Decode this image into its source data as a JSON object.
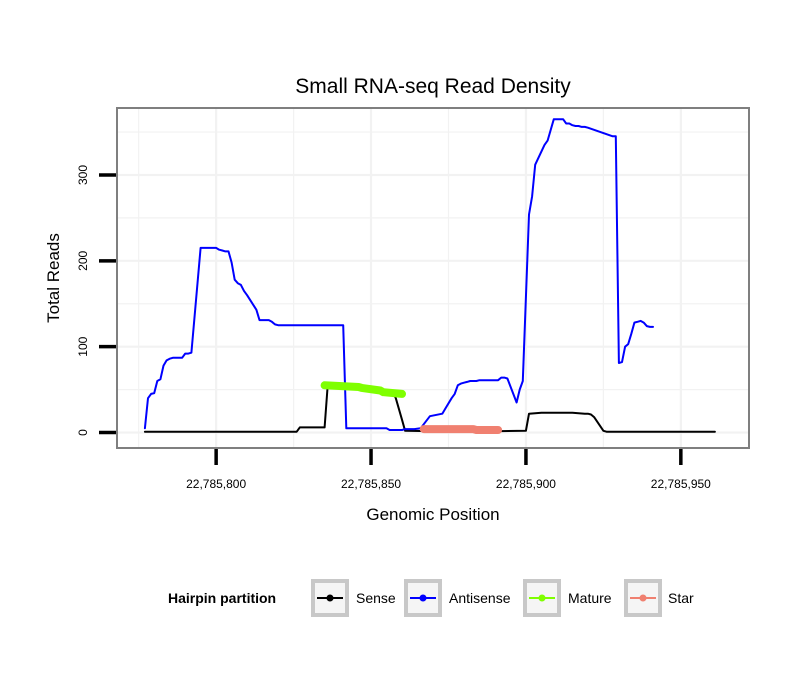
{
  "chart_data": {
    "type": "line",
    "title": "Small RNA-seq Read Density",
    "xlabel": "Genomic Position",
    "ylabel": "Total Reads",
    "xlim": [
      22785768,
      22785972
    ],
    "ylim": [
      -18,
      378
    ],
    "x_ticks": [
      22785800,
      22785850,
      22785900,
      22785950
    ],
    "x_tick_labels": [
      "22,785,800",
      "22,785,850",
      "22,785,900",
      "22,785,950"
    ],
    "y_ticks": [
      0,
      100,
      200,
      300
    ],
    "y_tick_labels": [
      "0",
      "100",
      "200",
      "300"
    ],
    "grid": true,
    "legend": {
      "title": "Hairpin partition",
      "position": "bottom",
      "entries": [
        "Sense",
        "Antisense",
        "Mature",
        "Star"
      ]
    },
    "series": [
      {
        "name": "Sense",
        "color": "#000000",
        "stroke_width": 2,
        "x": [
          22785777,
          22785826,
          22785827,
          22785835,
          22785836,
          22785848,
          22785852,
          22785857,
          22785858,
          22785860,
          22785861,
          22785880,
          22785900,
          22785901,
          22785905,
          22785915,
          22785919,
          22785920,
          22785921,
          22785922,
          22785925,
          22785926,
          22785961
        ],
        "y": [
          1,
          1,
          6,
          6,
          55,
          53,
          51,
          48,
          40,
          15,
          2,
          1,
          2,
          22,
          23,
          23,
          22,
          22,
          21,
          18,
          2,
          1,
          1
        ]
      },
      {
        "name": "Antisense",
        "color": "#0000ff",
        "stroke_width": 2,
        "x": [
          22785777,
          22785778,
          22785779,
          22785780,
          22785781,
          22785782,
          22785783,
          22785784,
          22785785,
          22785786,
          22785789,
          22785790,
          22785791,
          22785792,
          22785795,
          22785796,
          22785800,
          22785801,
          22785802,
          22785803,
          22785804,
          22785805,
          22785806,
          22785807,
          22785808,
          22785809,
          22785810,
          22785813,
          22785814,
          22785817,
          22785818,
          22785819,
          22785820,
          22785841,
          22785842,
          22785843,
          22785844,
          22785845,
          22785846,
          22785847,
          22785848,
          22785849,
          22785850,
          22785851,
          22785852,
          22785855,
          22785856,
          22785857,
          22785858,
          22785859,
          22785860,
          22785861,
          22785864,
          22785866,
          22785869,
          22785873,
          22785874,
          22785876,
          22785877,
          22785878,
          22785879,
          22785880,
          22785881,
          22785882,
          22785883,
          22785884,
          22785885,
          22785886,
          22785887,
          22785888,
          22785889,
          22785890,
          22785891,
          22785892,
          22785893,
          22785894,
          22785897,
          22785898,
          22785899,
          22785901,
          22785902,
          22785903,
          22785906,
          22785907,
          22785909,
          22785910,
          22785911,
          22785912,
          22785913,
          22785914,
          22785915,
          22785916,
          22785917,
          22785918,
          22785919,
          22785920,
          22785928,
          22785929,
          22785930,
          22785931,
          22785932,
          22785933,
          22785934,
          22785935,
          22785936,
          22785937,
          22785938,
          22785939,
          22785940,
          22785941
        ],
        "y": [
          5,
          40,
          45,
          46,
          60,
          62,
          78,
          84,
          86,
          87,
          87,
          92,
          92,
          93,
          215,
          215,
          215,
          213,
          212,
          211,
          211,
          198,
          178,
          174,
          172,
          165,
          160,
          143,
          131,
          131,
          129,
          126,
          125,
          125,
          5,
          5,
          5,
          5,
          5,
          5,
          5,
          5,
          5,
          5,
          5,
          5,
          3,
          3,
          3,
          3,
          3,
          4,
          4,
          5,
          19,
          22,
          28,
          40,
          45,
          55,
          57,
          58,
          59,
          60,
          60,
          60,
          61,
          61,
          61,
          61,
          61,
          61,
          61,
          64,
          64,
          63,
          35,
          50,
          60,
          254,
          275,
          312,
          335,
          340,
          365,
          365,
          365,
          365,
          360,
          360,
          358,
          357,
          357,
          356,
          356,
          355,
          345,
          345,
          81,
          82,
          100,
          103,
          115,
          128,
          129,
          130,
          128,
          124,
          123,
          123
        ]
      },
      {
        "name": "Mature",
        "color": "#7fff00",
        "stroke_width": 8,
        "x": [
          22785835,
          22785846,
          22785847,
          22785853,
          22785854,
          22785860
        ],
        "y": [
          55,
          53,
          52,
          49,
          47,
          45
        ]
      },
      {
        "name": "Star",
        "color": "#f08070",
        "stroke_width": 8,
        "x": [
          22785867,
          22785883,
          22785884,
          22785891
        ],
        "y": [
          4,
          4,
          3,
          3
        ]
      }
    ]
  }
}
